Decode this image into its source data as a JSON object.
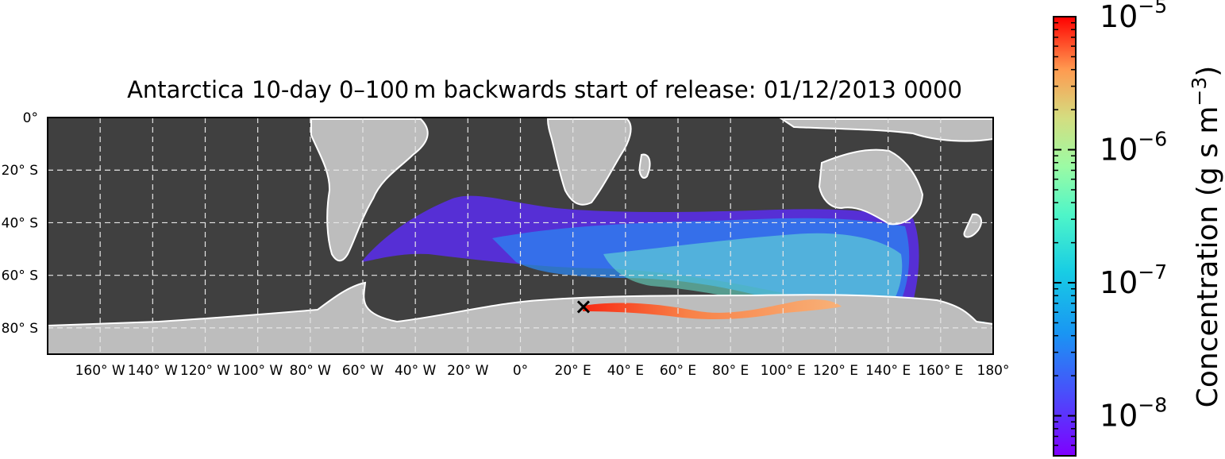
{
  "title": "Antarctica 10-day 0–100 m backwards start of release: 01/12/2013 0000",
  "map": {
    "lat_labels": [
      "0°",
      "20° S",
      "40° S",
      "60° S",
      "80° S"
    ],
    "lon_labels": [
      "160° W",
      "140° W",
      "120° W",
      "100° W",
      "80° W",
      "60° W",
      "40° W",
      "20° W",
      "0°",
      "20° E",
      "40° E",
      "60° E",
      "80° E",
      "100° E",
      "120° E",
      "140° E",
      "160° E",
      "180°"
    ],
    "ocean_color": "#404040",
    "land_color": "#bdbdbd",
    "coast_color": "#ffffff",
    "grid_color": "#e6e6e6",
    "marker": {
      "symbol": "cross-marker",
      "lon": 24,
      "lat": -72
    }
  },
  "colorbar": {
    "label_main": "Concentration (g s m",
    "label_exp": "−3",
    "label_close": ")",
    "scale": "log",
    "min": 5e-09,
    "max": 1e-05,
    "ticks": [
      {
        "base": "10",
        "exp": "−5",
        "value": 1e-05
      },
      {
        "base": "10",
        "exp": "−6",
        "value": 1e-06
      },
      {
        "base": "10",
        "exp": "−7",
        "value": 1e-07
      },
      {
        "base": "10",
        "exp": "−8",
        "value": 1e-08
      }
    ],
    "colormap": "rainbow"
  }
}
